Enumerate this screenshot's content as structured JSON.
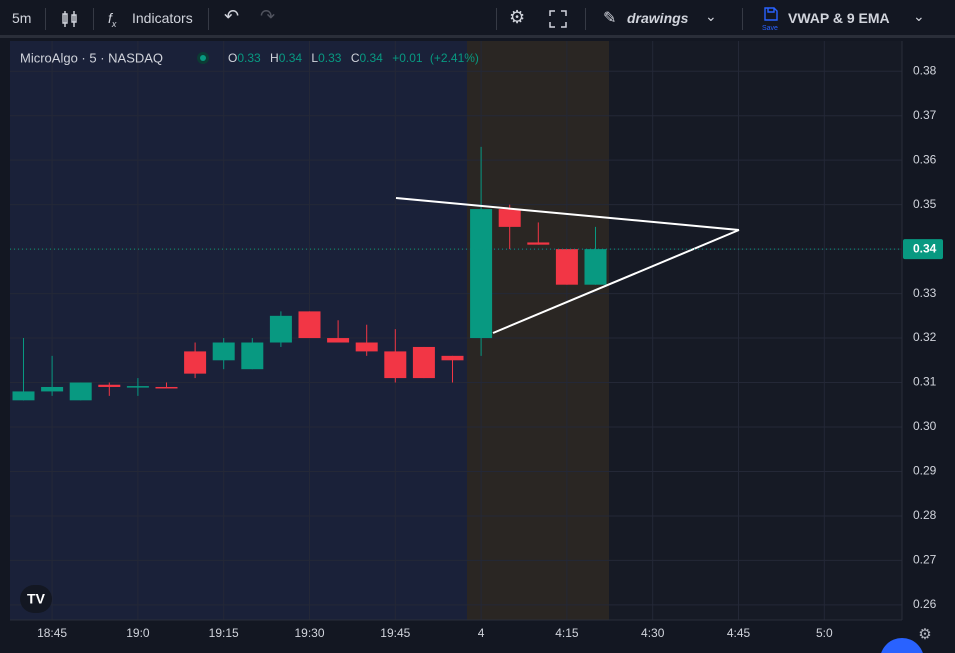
{
  "toolbar": {
    "interval": "5m",
    "indicators": "Indicators",
    "drawings": "drawings",
    "layout": "VWAP & 9 EMA",
    "save": "Save"
  },
  "legend": {
    "symbol": "MicroAlgo · 5 · NASDAQ",
    "open_label": "O",
    "open": "0.33",
    "high_label": "H",
    "high": "0.34",
    "low_label": "L",
    "low": "0.33",
    "close_label": "C",
    "close": "0.34",
    "change": "+0.01",
    "change_pct": "(+2.41%)"
  },
  "chart": {
    "type": "candlestick",
    "categories": [
      null,
      "18:45",
      null,
      null,
      "19:0",
      null,
      null,
      "19:15",
      null,
      null,
      "19:30",
      null,
      null,
      "19:45",
      null,
      null,
      "4",
      null,
      null,
      "4:15",
      null,
      null,
      "4:30",
      null,
      null,
      "4:45",
      null,
      null,
      "5:0"
    ],
    "open": [
      0.306,
      0.308,
      0.306,
      0.3095,
      0.309,
      0.309,
      0.317,
      0.315,
      0.313,
      0.319,
      0.326,
      0.32,
      0.319,
      0.317,
      0.318,
      0.316,
      0.32,
      0.349,
      0.3415,
      0.34,
      0.332,
      null,
      null,
      null,
      null,
      null,
      null,
      null,
      null
    ],
    "high": [
      0.32,
      0.316,
      0.31,
      0.31,
      0.311,
      0.31,
      0.319,
      0.32,
      0.32,
      0.326,
      0.326,
      0.324,
      0.323,
      0.322,
      0.318,
      0.316,
      0.363,
      0.35,
      0.346,
      0.34,
      0.345,
      null,
      null,
      null,
      null,
      null,
      null,
      null,
      null
    ],
    "low": [
      0.306,
      0.307,
      0.306,
      0.307,
      0.307,
      0.309,
      0.311,
      0.313,
      0.313,
      0.318,
      0.32,
      0.319,
      0.316,
      0.31,
      0.311,
      0.31,
      0.316,
      0.34,
      0.341,
      0.332,
      0.332,
      null,
      null,
      null,
      null,
      null,
      null,
      null,
      null
    ],
    "close": [
      0.308,
      0.309,
      0.31,
      0.309,
      0.3092,
      0.3088,
      0.312,
      0.319,
      0.319,
      0.325,
      0.32,
      0.319,
      0.317,
      0.311,
      0.311,
      0.315,
      0.349,
      0.345,
      0.341,
      0.332,
      0.34,
      null,
      null,
      null,
      null,
      null,
      null,
      null,
      null
    ],
    "up_color": "#089981",
    "down_color": "#f23645",
    "ylim": [
      0.2566,
      0.3868
    ],
    "yticks": [
      0.26,
      0.27,
      0.28,
      0.29,
      {
        "value": 0.3,
        "label": "0.30"
      },
      0.31,
      0.32,
      0.33,
      0.34,
      0.35,
      0.36,
      0.37,
      0.38
    ],
    "last_price": 0.34,
    "grid": true
  }
}
